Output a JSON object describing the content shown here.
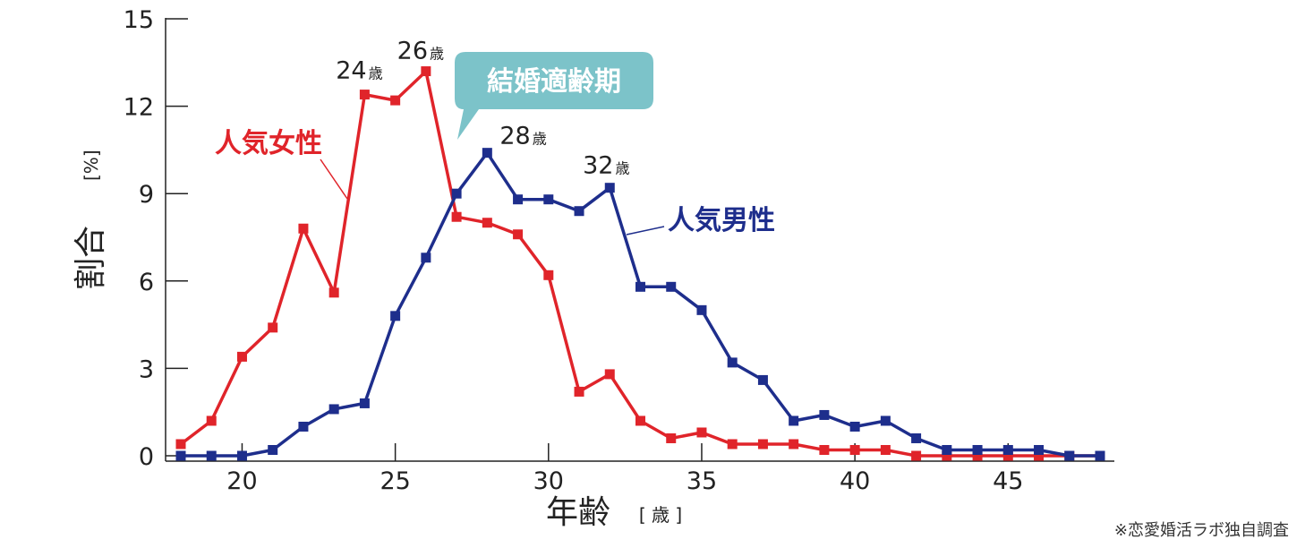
{
  "chart_data": {
    "type": "line",
    "x_label": "年齢",
    "x_unit": "歳",
    "y_label": "割合",
    "y_unit": "%",
    "x_ticks": [
      20,
      25,
      30,
      35,
      40,
      45
    ],
    "y_ticks": [
      0,
      3,
      6,
      9,
      12,
      15
    ],
    "xlim": [
      18,
      48
    ],
    "ylim": [
      0,
      15
    ],
    "x": [
      18,
      19,
      20,
      21,
      22,
      23,
      24,
      25,
      26,
      27,
      28,
      29,
      30,
      31,
      32,
      33,
      34,
      35,
      36,
      37,
      38,
      39,
      40,
      41,
      42,
      43,
      44,
      45,
      46,
      47,
      48
    ],
    "series": [
      {
        "name": "人気女性",
        "color": "#e0242a",
        "values": [
          0.4,
          1.2,
          3.4,
          4.4,
          7.8,
          5.6,
          12.4,
          12.2,
          13.2,
          8.2,
          8.0,
          7.6,
          6.2,
          2.2,
          2.8,
          1.2,
          0.6,
          0.8,
          0.4,
          0.4,
          0.4,
          0.2,
          0.2,
          0.2,
          0.0,
          0.0,
          0.0,
          0.0,
          0.0,
          0.0,
          0.0
        ]
      },
      {
        "name": "人気男性",
        "color": "#1e2e8c",
        "values": [
          0.0,
          0.0,
          0.0,
          0.2,
          1.0,
          1.6,
          1.8,
          4.8,
          6.8,
          9.0,
          10.4,
          8.8,
          8.8,
          8.4,
          9.2,
          5.8,
          5.8,
          5.0,
          3.2,
          2.6,
          1.2,
          1.4,
          1.0,
          1.2,
          0.6,
          0.2,
          0.2,
          0.2,
          0.2,
          0.0,
          0.0
        ]
      }
    ],
    "annotations": [
      {
        "x": 24,
        "y": 12.4,
        "num": "24",
        "unit": "歳"
      },
      {
        "x": 26,
        "y": 13.2,
        "num": "26",
        "unit": "歳"
      },
      {
        "x": 28,
        "y": 10.4,
        "num": "28",
        "unit": "歳"
      },
      {
        "x": 32,
        "y": 9.2,
        "num": "32",
        "unit": "歳"
      }
    ],
    "callout": {
      "text": "結婚適齢期",
      "color": "#7cc3c9"
    },
    "source": "※恋愛婚活ラボ独自調査"
  }
}
